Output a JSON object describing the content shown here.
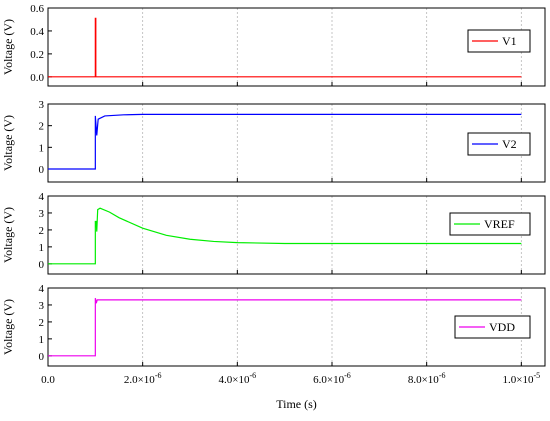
{
  "chart_data": {
    "type": "line",
    "shared_x": {
      "label": "Time (s)",
      "range": [
        0,
        1.05e-05
      ],
      "ticks": [
        0,
        2e-06,
        4e-06,
        6e-06,
        8e-06,
        1e-05
      ],
      "tick_labels": [
        {
          "mant": "0.0",
          "exp": ""
        },
        {
          "mant": "2.0×10",
          "exp": "-6"
        },
        {
          "mant": "4.0×10",
          "exp": "-6"
        },
        {
          "mant": "6.0×10",
          "exp": "-6"
        },
        {
          "mant": "8.0×10",
          "exp": "-6"
        },
        {
          "mant": "1.0×10",
          "exp": "-5"
        }
      ]
    },
    "panels": [
      {
        "ylabel": "Voltage (V)",
        "ylim": [
          -0.08,
          0.6
        ],
        "yticks": [
          0.0,
          0.2,
          0.4,
          0.6
        ],
        "ytick_labels": [
          "0.0",
          "0.2",
          "0.4",
          "0.6"
        ],
        "series": [
          {
            "name": "V1",
            "color": "#ff0000",
            "points": [
              [
                0,
                0
              ],
              [
                1e-06,
                0
              ],
              [
                1e-06,
                0.51
              ],
              [
                1.01e-06,
                0.51
              ],
              [
                1.01e-06,
                0
              ],
              [
                1e-05,
                0
              ]
            ]
          }
        ],
        "legend_position": "top-right"
      },
      {
        "ylabel": "Voltage (V)",
        "ylim": [
          -0.6,
          3.0
        ],
        "yticks": [
          0,
          1,
          2,
          3
        ],
        "ytick_labels": [
          "0",
          "1",
          "2",
          "3"
        ],
        "series": [
          {
            "name": "V2",
            "color": "#0000ff",
            "points": [
              [
                0,
                0
              ],
              [
                1e-06,
                0
              ],
              [
                1e-06,
                2.45
              ],
              [
                1.03e-06,
                1.55
              ],
              [
                1.06e-06,
                2.3
              ],
              [
                1.2e-06,
                2.45
              ],
              [
                1.6e-06,
                2.5
              ],
              [
                2e-06,
                2.52
              ],
              [
                1e-05,
                2.52
              ]
            ]
          }
        ],
        "legend_position": "center-right"
      },
      {
        "ylabel": "Voltage (V)",
        "ylim": [
          -0.6,
          4.0
        ],
        "yticks": [
          0,
          1,
          2,
          3,
          4
        ],
        "ytick_labels": [
          "0",
          "1",
          "2",
          "3",
          "4"
        ],
        "series": [
          {
            "name": "VREF",
            "color": "#00ee00",
            "points": [
              [
                0,
                0
              ],
              [
                1e-06,
                0
              ],
              [
                1e-06,
                2.5
              ],
              [
                1.02e-06,
                2.5
              ],
              [
                1.03e-06,
                1.9
              ],
              [
                1.05e-06,
                3.2
              ],
              [
                1.1e-06,
                3.28
              ],
              [
                1.3e-06,
                3.05
              ],
              [
                1.5e-06,
                2.72
              ],
              [
                2e-06,
                2.1
              ],
              [
                2.5e-06,
                1.68
              ],
              [
                3e-06,
                1.45
              ],
              [
                3.5e-06,
                1.32
              ],
              [
                4e-06,
                1.25
              ],
              [
                5e-06,
                1.2
              ],
              [
                6e-06,
                1.2
              ],
              [
                1e-05,
                1.2
              ]
            ]
          }
        ],
        "legend_position": "center-right"
      },
      {
        "ylabel": "Voltage (V)",
        "ylim": [
          -0.6,
          4.0
        ],
        "yticks": [
          0,
          1,
          2,
          3,
          4
        ],
        "ytick_labels": [
          "0",
          "1",
          "2",
          "3",
          "4"
        ],
        "series": [
          {
            "name": "VDD",
            "color": "#ee00ee",
            "points": [
              [
                0,
                0
              ],
              [
                1e-06,
                0
              ],
              [
                1e-06,
                3.4
              ],
              [
                1.02e-06,
                3.1
              ],
              [
                1.04e-06,
                3.3
              ],
              [
                1e-05,
                3.3
              ]
            ]
          }
        ],
        "legend_position": "center-right"
      }
    ]
  }
}
